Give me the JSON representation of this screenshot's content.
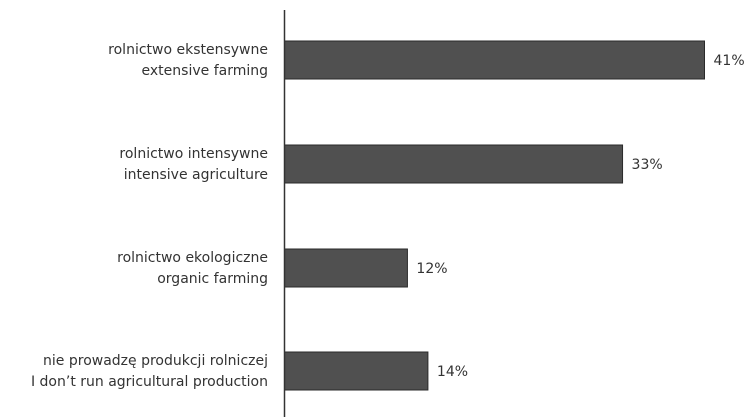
{
  "chart_data": {
    "type": "bar",
    "orientation": "horizontal",
    "categories": [
      [
        "rolnictwo ekstensywne",
        "extensive farming"
      ],
      [
        "rolnictwo intensywne",
        "intensive agriculture"
      ],
      [
        "rolnictwo ekologiczne",
        "organic farming"
      ],
      [
        "nie prowadzę produkcji rolniczej",
        "I don’t run agricultural production"
      ]
    ],
    "values": [
      41,
      33,
      12,
      14
    ],
    "value_labels": [
      "41%",
      "33%",
      "12%",
      "14%"
    ],
    "xlim": [
      0,
      41
    ],
    "grid": false,
    "legend": "none",
    "colors": {
      "bar": "#505050",
      "bar_stroke": "#2a2a2a",
      "axis": "#333333",
      "text": "#333333"
    }
  }
}
